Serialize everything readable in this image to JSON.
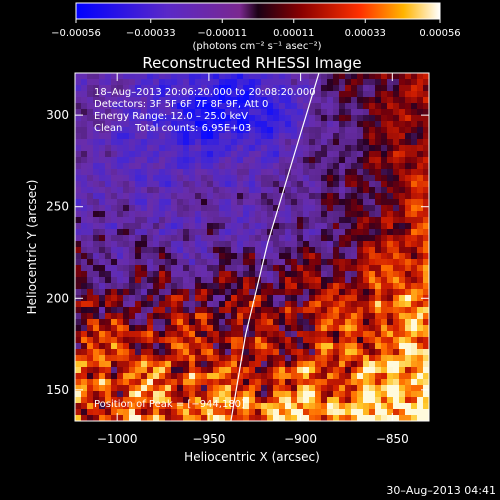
{
  "chart_data": {
    "type": "heatmap",
    "title": "Reconstructed RHESSI Image",
    "xlabel": "Heliocentric X (arcsec)",
    "ylabel": "Heliocentric Y (arcsec)",
    "xlim": [
      -1023,
      -830
    ],
    "ylim": [
      133,
      323
    ],
    "x_ticks": [
      {
        "value": -1000,
        "label": "−1000"
      },
      {
        "value": -950,
        "label": "−950"
      },
      {
        "value": -900,
        "label": "−900"
      },
      {
        "value": -850,
        "label": "−850"
      }
    ],
    "y_ticks": [
      {
        "value": 150,
        "label": "150"
      },
      {
        "value": 200,
        "label": "200"
      },
      {
        "value": 250,
        "label": "250"
      },
      {
        "value": 300,
        "label": "300"
      }
    ],
    "annotations": [
      "18–Aug–2013 20:06:20.000 to 20:08:20.000",
      "Detectors: 3F 5F 6F 7F 8F 9F, Att 0",
      "Energy Range: 12.0 – 25.0 keV",
      "Clean    Total counts: 6.95E+03"
    ],
    "peak_text": "Position of Peak = [−944,180]",
    "peak_position": [
      -944,
      180
    ],
    "limb_curve": [
      [
        -938,
        133
      ],
      [
        -930,
        180
      ],
      [
        -918,
        230
      ],
      [
        -903,
        280
      ],
      [
        -890,
        323
      ]
    ],
    "colorbar": {
      "min": -0.00056,
      "max": 0.00056,
      "ticks": [
        {
          "value": -0.00056,
          "label": "−0.00056"
        },
        {
          "value": -0.00033,
          "label": "−0.00033"
        },
        {
          "value": -0.00011,
          "label": "−0.00011"
        },
        {
          "value": 0.00011,
          "label": "0.00011"
        },
        {
          "value": 0.00033,
          "label": "0.00033"
        },
        {
          "value": 0.00056,
          "label": "0.00056"
        }
      ],
      "unit_label": "(photons cm⁻² s⁻¹ asec⁻²)"
    },
    "grid": false
  },
  "timestamp": "30–Aug–2013 04:41"
}
